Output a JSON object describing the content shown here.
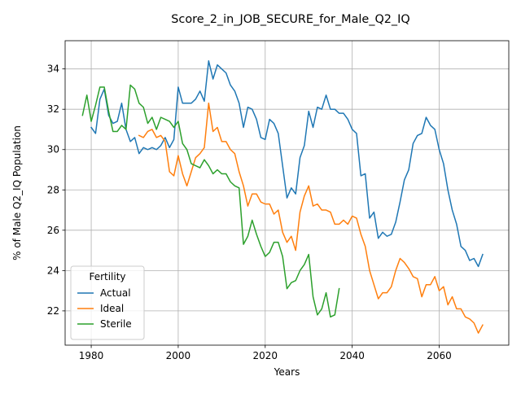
{
  "chart_data": {
    "type": "line",
    "title": "Score_2_in_JOB_SECURE_for_Male_Q2_IQ",
    "xlabel": "Years",
    "ylabel": "% of Male Q2_IQ Population",
    "xlim": [
      1974,
      2076
    ],
    "ylim": [
      20.3,
      35.4
    ],
    "xticks": [
      1980,
      2000,
      2020,
      2040,
      2060
    ],
    "yticks": [
      22,
      24,
      26,
      28,
      30,
      32,
      34
    ],
    "grid": true,
    "legend": {
      "title": "Fertility",
      "position": "lower-left"
    },
    "colors": {
      "Actual": "#1f77b4",
      "Ideal": "#ff7f0e",
      "Sterile": "#2ca02c"
    },
    "series": [
      {
        "name": "Actual",
        "x": [
          1980,
          1981,
          1982,
          1983,
          1984,
          1985,
          1986,
          1987,
          1988,
          1989,
          1990,
          1991,
          1992,
          1993,
          1994,
          1995,
          1996,
          1997,
          1998,
          1999,
          2000,
          2001,
          2002,
          2003,
          2004,
          2005,
          2006,
          2007,
          2008,
          2009,
          2010,
          2011,
          2012,
          2013,
          2014,
          2015,
          2016,
          2017,
          2018,
          2019,
          2020,
          2021,
          2022,
          2023,
          2024,
          2025,
          2026,
          2027,
          2028,
          2029,
          2030,
          2031,
          2032,
          2033,
          2034,
          2035,
          2036,
          2037,
          2038,
          2039,
          2040,
          2041,
          2042,
          2043,
          2044,
          2045,
          2046,
          2047,
          2048,
          2049,
          2050,
          2051,
          2052,
          2053,
          2054,
          2055,
          2056,
          2057,
          2058,
          2059,
          2060,
          2061,
          2062,
          2063,
          2064,
          2065,
          2066,
          2067,
          2068,
          2069,
          2070
        ],
        "y": [
          31.1,
          30.8,
          32.5,
          33.0,
          31.7,
          31.3,
          31.4,
          32.3,
          31.0,
          30.4,
          30.6,
          29.8,
          30.1,
          30.0,
          30.1,
          30.0,
          30.2,
          30.6,
          30.1,
          30.5,
          33.1,
          32.3,
          32.3,
          32.3,
          32.5,
          32.9,
          32.4,
          34.4,
          33.5,
          34.2,
          34.0,
          33.8,
          33.2,
          32.9,
          32.3,
          31.1,
          32.1,
          32.0,
          31.5,
          30.6,
          30.5,
          31.5,
          31.3,
          30.8,
          29.2,
          27.6,
          28.1,
          27.8,
          29.6,
          30.2,
          31.9,
          31.1,
          32.1,
          32.0,
          32.7,
          32.0,
          32.0,
          31.8,
          31.8,
          31.5,
          31.0,
          30.8,
          28.7,
          28.8,
          26.6,
          26.9,
          25.6,
          25.9,
          25.7,
          25.8,
          26.4,
          27.4,
          28.5,
          29.0,
          30.3,
          30.7,
          30.8,
          31.6,
          31.2,
          31.0,
          30.0,
          29.3,
          28.0,
          27.0,
          26.3,
          25.2,
          25.0,
          24.5,
          24.6,
          24.2,
          24.8
        ]
      },
      {
        "name": "Ideal",
        "x": [
          1991,
          1992,
          1993,
          1994,
          1995,
          1996,
          1997,
          1998,
          1999,
          2000,
          2001,
          2002,
          2003,
          2004,
          2005,
          2006,
          2007,
          2008,
          2009,
          2010,
          2011,
          2012,
          2013,
          2014,
          2015,
          2016,
          2017,
          2018,
          2019,
          2020,
          2021,
          2022,
          2023,
          2024,
          2025,
          2026,
          2027,
          2028,
          2029,
          2030,
          2031,
          2032,
          2033,
          2034,
          2035,
          2036,
          2037,
          2038,
          2039,
          2040,
          2041,
          2042,
          2043,
          2044,
          2045,
          2046,
          2047,
          2048,
          2049,
          2050,
          2051,
          2052,
          2053,
          2054,
          2055,
          2056,
          2057,
          2058,
          2059,
          2060,
          2061,
          2062,
          2063,
          2064,
          2065,
          2066,
          2067,
          2068,
          2069,
          2070
        ],
        "y": [
          30.7,
          30.6,
          30.9,
          31.0,
          30.6,
          30.7,
          30.4,
          28.9,
          28.7,
          29.7,
          28.8,
          28.2,
          28.9,
          29.6,
          29.8,
          30.1,
          32.3,
          30.9,
          31.1,
          30.4,
          30.4,
          30.0,
          29.8,
          28.9,
          28.2,
          27.2,
          27.8,
          27.8,
          27.4,
          27.3,
          27.3,
          26.8,
          27.0,
          25.9,
          25.4,
          25.7,
          25.0,
          26.9,
          27.7,
          28.2,
          27.2,
          27.3,
          27.0,
          27.0,
          26.9,
          26.3,
          26.3,
          26.5,
          26.3,
          26.7,
          26.6,
          25.8,
          25.2,
          24.0,
          23.3,
          22.6,
          22.9,
          22.9,
          23.2,
          24.0,
          24.6,
          24.4,
          24.1,
          23.7,
          23.6,
          22.7,
          23.3,
          23.3,
          23.7,
          23.0,
          23.2,
          22.3,
          22.7,
          22.1,
          22.1,
          21.7,
          21.6,
          21.4,
          20.9,
          21.3
        ]
      },
      {
        "name": "Sterile",
        "x": [
          1978,
          1979,
          1980,
          1981,
          1982,
          1983,
          1984,
          1985,
          1986,
          1987,
          1988,
          1989,
          1990,
          1991,
          1992,
          1993,
          1994,
          1995,
          1996,
          1997,
          1998,
          1999,
          2000,
          2001,
          2002,
          2003,
          2004,
          2005,
          2006,
          2007,
          2008,
          2009,
          2010,
          2011,
          2012,
          2013,
          2014,
          2015,
          2016,
          2017,
          2018,
          2019,
          2020,
          2021,
          2022,
          2023,
          2024,
          2025,
          2026,
          2027,
          2028,
          2029,
          2030,
          2031,
          2032,
          2033,
          2034,
          2035,
          2036,
          2037
        ],
        "y": [
          31.7,
          32.7,
          31.4,
          32.2,
          33.1,
          33.1,
          31.9,
          30.9,
          30.9,
          31.2,
          31.0,
          33.2,
          33.0,
          32.3,
          32.1,
          31.3,
          31.6,
          31.0,
          31.6,
          31.5,
          31.4,
          31.1,
          31.4,
          30.3,
          30.0,
          29.3,
          29.2,
          29.1,
          29.5,
          29.2,
          28.8,
          29.0,
          28.8,
          28.8,
          28.4,
          28.2,
          28.1,
          25.3,
          25.7,
          26.5,
          25.8,
          25.2,
          24.7,
          24.9,
          25.4,
          25.4,
          24.7,
          23.1,
          23.4,
          23.5,
          24.0,
          24.3,
          24.8,
          22.7,
          21.8,
          22.1,
          22.9,
          21.7,
          21.8,
          23.1
        ]
      }
    ]
  }
}
